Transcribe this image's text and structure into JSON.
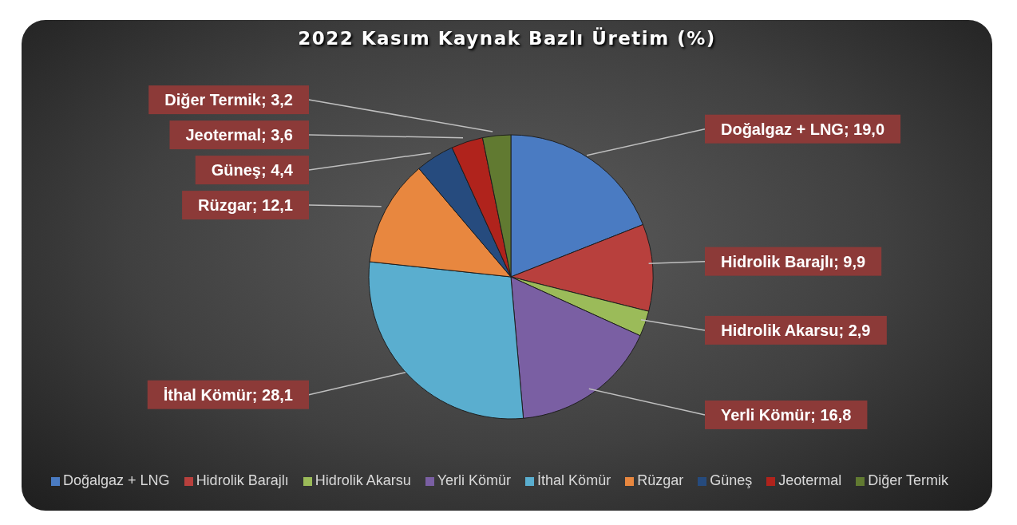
{
  "chart_data": {
    "type": "pie",
    "title": "2022 Kasım Kaynak Bazlı Üretim (%)",
    "categories": [
      "Doğalgaz + LNG",
      "Hidrolik Barajlı",
      "Hidrolik Akarsu",
      "Yerli Kömür",
      "İthal Kömür",
      "Rüzgar",
      "Güneş",
      "Jeotermal",
      "Diğer Termik"
    ],
    "values": [
      19.0,
      9.9,
      2.9,
      16.8,
      28.1,
      12.1,
      4.4,
      3.6,
      3.2
    ],
    "colors": [
      "#4a7bc2",
      "#b8403d",
      "#9bbb59",
      "#7a5fa3",
      "#5aaecf",
      "#e8873f",
      "#264b7e",
      "#b0231c",
      "#617a31"
    ],
    "value_labels": [
      "Doğalgaz + LNG; 19,0",
      "Hidrolik Barajlı; 9,9",
      "Hidrolik Akarsu; 2,9",
      "Yerli Kömür; 16,8",
      "İthal Kömür; 28,1",
      "Rüzgar; 12,1",
      "Güneş; 4,4",
      "Jeotermal; 3,6",
      "Diğer Termik; 3,2"
    ],
    "legend": "bottom"
  }
}
